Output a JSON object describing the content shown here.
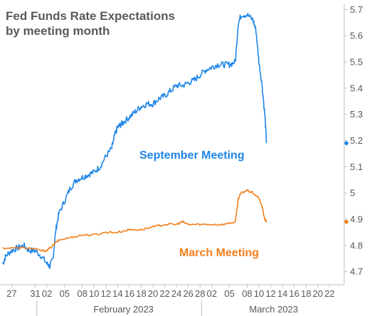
{
  "chart_data": {
    "type": "line",
    "title_lines": [
      "Fed Funds Rate Expectations",
      "by meeting month"
    ],
    "ylim": [
      4.65,
      5.72
    ],
    "yticks": [
      "4.7",
      "4.8",
      "4.9",
      "5",
      "5.1",
      "5.2",
      "5.3",
      "5.4",
      "5.5",
      "5.6",
      "5.7"
    ],
    "xlim": [
      -1.5,
      56.5
    ],
    "xticks": [
      {
        "label": "27",
        "x": 0
      },
      {
        "label": "31",
        "x": 4
      },
      {
        "label": "02",
        "x": 6
      },
      {
        "label": "05",
        "x": 9
      },
      {
        "label": "08",
        "x": 12
      },
      {
        "label": "10",
        "x": 14
      },
      {
        "label": "12",
        "x": 16
      },
      {
        "label": "14",
        "x": 18
      },
      {
        "label": "16",
        "x": 20
      },
      {
        "label": "18",
        "x": 22
      },
      {
        "label": "20",
        "x": 24
      },
      {
        "label": "22",
        "x": 26
      },
      {
        "label": "24",
        "x": 28
      },
      {
        "label": "26",
        "x": 30
      },
      {
        "label": "28",
        "x": 32
      },
      {
        "label": "02",
        "x": 34
      },
      {
        "label": "05",
        "x": 37
      },
      {
        "label": "08",
        "x": 40
      },
      {
        "label": "10",
        "x": 42
      },
      {
        "label": "12",
        "x": 44
      },
      {
        "label": "14",
        "x": 46
      },
      {
        "label": "16",
        "x": 48
      },
      {
        "label": "18",
        "x": 50
      },
      {
        "label": "20",
        "x": 52
      },
      {
        "label": "22",
        "x": 54
      }
    ],
    "month_labels": [
      {
        "label": "February 2023",
        "start": 5,
        "end": 33
      },
      {
        "label": "March 2023",
        "start": 33,
        "end": 56
      }
    ],
    "series": [
      {
        "name": "September Meeting",
        "color": "#1f86e8",
        "last_value": 5.19,
        "x": [
          -1.5,
          -1,
          0,
          1,
          2,
          3,
          4,
          5,
          6,
          6.5,
          7,
          7.5,
          8,
          9,
          10,
          11,
          12,
          13,
          14,
          15,
          16,
          17,
          17.5,
          18,
          18.5,
          19,
          20,
          21,
          22,
          23,
          24,
          25,
          26,
          27,
          28,
          29,
          30,
          31,
          32,
          33,
          34,
          35,
          36,
          37,
          38,
          38.5,
          39,
          40,
          41,
          41.5,
          42,
          42.5,
          43,
          43.3
        ],
        "y": [
          4.73,
          4.76,
          4.78,
          4.79,
          4.8,
          4.78,
          4.78,
          4.76,
          4.73,
          4.72,
          4.75,
          4.86,
          4.92,
          4.97,
          5.02,
          5.05,
          5.06,
          5.07,
          5.08,
          5.1,
          5.14,
          5.17,
          5.22,
          5.25,
          5.26,
          5.27,
          5.29,
          5.31,
          5.33,
          5.34,
          5.34,
          5.36,
          5.37,
          5.39,
          5.41,
          5.41,
          5.42,
          5.43,
          5.45,
          5.47,
          5.48,
          5.49,
          5.49,
          5.49,
          5.5,
          5.65,
          5.68,
          5.68,
          5.66,
          5.62,
          5.5,
          5.42,
          5.3,
          5.19
        ]
      },
      {
        "name": "March Meeting",
        "color": "#f07f1c",
        "last_value": 4.89,
        "x": [
          -1.5,
          1,
          3,
          5,
          6,
          7,
          8,
          10,
          12,
          14,
          16,
          18,
          20,
          22,
          24,
          26,
          28,
          29,
          30,
          32,
          34,
          36,
          38,
          38.5,
          39,
          40,
          41,
          42,
          42.5,
          43,
          43.3
        ],
        "y": [
          4.79,
          4.79,
          4.79,
          4.78,
          4.78,
          4.8,
          4.82,
          4.83,
          4.84,
          4.84,
          4.85,
          4.85,
          4.86,
          4.86,
          4.87,
          4.88,
          4.88,
          4.89,
          4.88,
          4.88,
          4.88,
          4.88,
          4.89,
          4.98,
          5.0,
          5.01,
          5.0,
          4.98,
          4.95,
          4.9,
          4.89
        ]
      }
    ],
    "annotations": [
      {
        "text": "September Meeting",
        "color": "#1f86e8"
      },
      {
        "text": "March Meeting",
        "color": "#f07f1c"
      }
    ]
  }
}
